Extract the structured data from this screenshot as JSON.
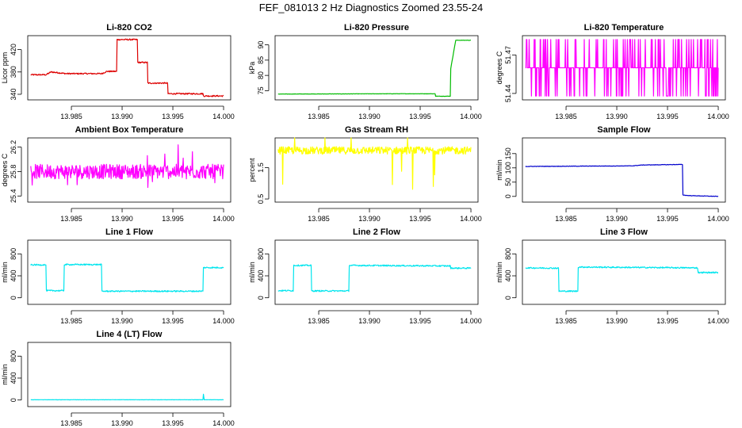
{
  "page_title": "FEF_081013  2 Hz Diagnostics Zoomed 23.55-24",
  "chart_data": [
    {
      "type": "line",
      "title": "Li-820 CO2",
      "ylabel": "Licor ppm",
      "color": "#dd0000",
      "xlim": [
        13.9807,
        14.0007
      ],
      "ylim": [
        330,
        445
      ],
      "x_ticks": [
        13.985,
        13.99,
        13.995,
        14.0
      ],
      "x_tick_labels": [
        "13.985",
        "13.990",
        "13.995",
        "14.000"
      ],
      "y_ticks": [
        340,
        380,
        420
      ],
      "y_tick_labels": [
        "340",
        "380",
        "420"
      ],
      "x": [
        13.981,
        13.9825,
        13.983,
        13.9845,
        13.988,
        13.9885,
        13.9895,
        13.9895,
        13.9915,
        13.9915,
        13.9925,
        13.9925,
        13.9945,
        13.9945,
        13.998,
        13.998,
        14.0
      ],
      "y": [
        375,
        375,
        380,
        377,
        377,
        381,
        381,
        438,
        438,
        397,
        397,
        360,
        360,
        341,
        341,
        337,
        337
      ],
      "noise": 1.2,
      "spikes": 0
    },
    {
      "type": "line",
      "title": "Li-820 Pressure",
      "ylabel": "kPa",
      "color": "#00bb00",
      "xlim": [
        13.9807,
        14.0007
      ],
      "ylim": [
        72,
        93
      ],
      "x_ticks": [
        13.985,
        13.99,
        13.995,
        14.0
      ],
      "x_tick_labels": [
        "13.985",
        "13.990",
        "13.995",
        "14.000"
      ],
      "y_ticks": [
        75,
        80,
        85,
        90
      ],
      "y_tick_labels": [
        "75",
        "80",
        "85",
        "90"
      ],
      "x": [
        13.981,
        13.9925,
        13.9965,
        13.9965,
        13.998,
        13.998,
        13.9985,
        14.0
      ],
      "y": [
        73.9,
        74.0,
        74.0,
        73.2,
        73.2,
        82,
        91.5,
        91.5
      ],
      "noise": 0.05,
      "spikes": 0
    },
    {
      "type": "line",
      "title": "Li-820 Temperature",
      "ylabel": "degrees C",
      "color": "#ff00ff",
      "xlim": [
        13.9807,
        14.0007
      ],
      "ylim": [
        51.435,
        51.485
      ],
      "x_ticks": [
        13.985,
        13.99,
        13.995,
        14.0
      ],
      "x_tick_labels": [
        "13.985",
        "13.990",
        "13.995",
        "14.000"
      ],
      "y_ticks": [
        51.44,
        51.47
      ],
      "y_tick_labels": [
        "51.44",
        "51.47"
      ],
      "x": [
        13.981,
        14.0
      ],
      "y": [
        51.46,
        51.46
      ],
      "levels": [
        51.438,
        51.46,
        51.482
      ],
      "noise": 0,
      "spikes": 0
    },
    {
      "type": "line",
      "title": "Ambient Box Temperature",
      "ylabel": "degrees C",
      "color": "#ff00ff",
      "xlim": [
        13.9807,
        14.0007
      ],
      "ylim": [
        25.3,
        26.35
      ],
      "x_ticks": [
        13.985,
        13.99,
        13.995,
        14.0
      ],
      "x_tick_labels": [
        "13.985",
        "13.990",
        "13.995",
        "14.000"
      ],
      "y_ticks": [
        25.4,
        25.8,
        26.2
      ],
      "y_tick_labels": [
        "25.4",
        "25.8",
        "26.2"
      ],
      "x": [
        13.981,
        14.0
      ],
      "y": [
        25.8,
        25.8
      ],
      "noise": 0.12,
      "spikes": 0.35
    },
    {
      "type": "line",
      "title": "Gas Stream RH",
      "ylabel": "percent",
      "color": "#ffff00",
      "xlim": [
        13.9807,
        14.0007
      ],
      "ylim": [
        0.4,
        2.45
      ],
      "x_ticks": [
        13.985,
        13.99,
        13.995,
        14.0
      ],
      "x_tick_labels": [
        "13.985",
        "13.990",
        "13.995",
        "14.000"
      ],
      "y_ticks": [
        0.5,
        1.5
      ],
      "y_tick_labels": [
        "0.5",
        "1.5"
      ],
      "x": [
        13.981,
        14.0
      ],
      "y": [
        2.05,
        2.05
      ],
      "noise": 0.12,
      "spikes": 1.2
    },
    {
      "type": "line",
      "title": "Sample Flow",
      "ylabel": "ml/min",
      "color": "#0000cc",
      "xlim": [
        13.9807,
        14.0007
      ],
      "ylim": [
        -20,
        205
      ],
      "x_ticks": [
        13.985,
        13.99,
        13.995,
        14.0
      ],
      "x_tick_labels": [
        "13.985",
        "13.990",
        "13.995",
        "14.000"
      ],
      "y_ticks": [
        0,
        50,
        100,
        150
      ],
      "y_tick_labels": [
        "0",
        "50",
        "100",
        "150"
      ],
      "x": [
        13.981,
        13.9915,
        13.9925,
        13.9965,
        13.9965,
        13.997,
        14.0
      ],
      "y": [
        105,
        107,
        110,
        112,
        5,
        3,
        0
      ],
      "noise": 0.8,
      "spikes": 0
    },
    {
      "type": "line",
      "title": "Line 1 Flow",
      "ylabel": "ml/min",
      "color": "#00e5ee",
      "xlim": [
        13.9807,
        14.0007
      ],
      "ylim": [
        -120,
        1050
      ],
      "x_ticks": [
        13.985,
        13.99,
        13.995,
        14.0
      ],
      "x_tick_labels": [
        "13.985",
        "13.990",
        "13.995",
        "14.000"
      ],
      "y_ticks": [
        0,
        400,
        800
      ],
      "y_tick_labels": [
        "0",
        "400",
        "800"
      ],
      "x": [
        13.981,
        13.9825,
        13.9825,
        13.9843,
        13.9843,
        13.988,
        13.988,
        13.998,
        13.998,
        14.0
      ],
      "y": [
        600,
        600,
        130,
        130,
        605,
        605,
        120,
        120,
        550,
        550
      ],
      "noise": 12,
      "spikes": 0
    },
    {
      "type": "line",
      "title": "Line 2 Flow",
      "ylabel": "ml/min",
      "color": "#00e5ee",
      "xlim": [
        13.9807,
        14.0007
      ],
      "ylim": [
        -120,
        1050
      ],
      "x_ticks": [
        13.985,
        13.99,
        13.995,
        14.0
      ],
      "x_tick_labels": [
        "13.985",
        "13.990",
        "13.995",
        "14.000"
      ],
      "y_ticks": [
        0,
        400,
        800
      ],
      "y_tick_labels": [
        "0",
        "400",
        "800"
      ],
      "x": [
        13.981,
        13.9825,
        13.9825,
        13.9843,
        13.9843,
        13.988,
        13.988,
        13.998,
        13.998,
        14.0
      ],
      "y": [
        130,
        130,
        590,
        590,
        125,
        125,
        590,
        580,
        540,
        540
      ],
      "noise": 12,
      "spikes": 0
    },
    {
      "type": "line",
      "title": "Line 3 Flow",
      "ylabel": "ml/min",
      "color": "#00e5ee",
      "xlim": [
        13.9807,
        14.0007
      ],
      "ylim": [
        -120,
        1050
      ],
      "x_ticks": [
        13.985,
        13.99,
        13.995,
        14.0
      ],
      "x_tick_labels": [
        "13.985",
        "13.990",
        "13.995",
        "14.000"
      ],
      "y_ticks": [
        0,
        400,
        800
      ],
      "y_tick_labels": [
        "0",
        "400",
        "800"
      ],
      "x": [
        13.981,
        13.9843,
        13.9843,
        13.9862,
        13.9862,
        13.998,
        13.998,
        14.0
      ],
      "y": [
        545,
        540,
        120,
        120,
        560,
        545,
        460,
        460
      ],
      "noise": 12,
      "spikes": 0
    },
    {
      "type": "line",
      "title": "Line 4 (LT) Flow",
      "ylabel": "ml/min",
      "color": "#00e5ee",
      "xlim": [
        13.9807,
        14.0007
      ],
      "ylim": [
        -120,
        1050
      ],
      "x_ticks": [
        13.985,
        13.99,
        13.995,
        14.0
      ],
      "x_tick_labels": [
        "13.985",
        "13.990",
        "13.995",
        "14.000"
      ],
      "y_ticks": [
        0,
        400,
        800
      ],
      "y_tick_labels": [
        "0",
        "400",
        "800"
      ],
      "x": [
        13.981,
        13.998,
        13.998,
        13.9981,
        13.9982,
        14.0
      ],
      "y": [
        5,
        5,
        120,
        5,
        5,
        5
      ],
      "noise": 2,
      "spikes": 0
    }
  ]
}
